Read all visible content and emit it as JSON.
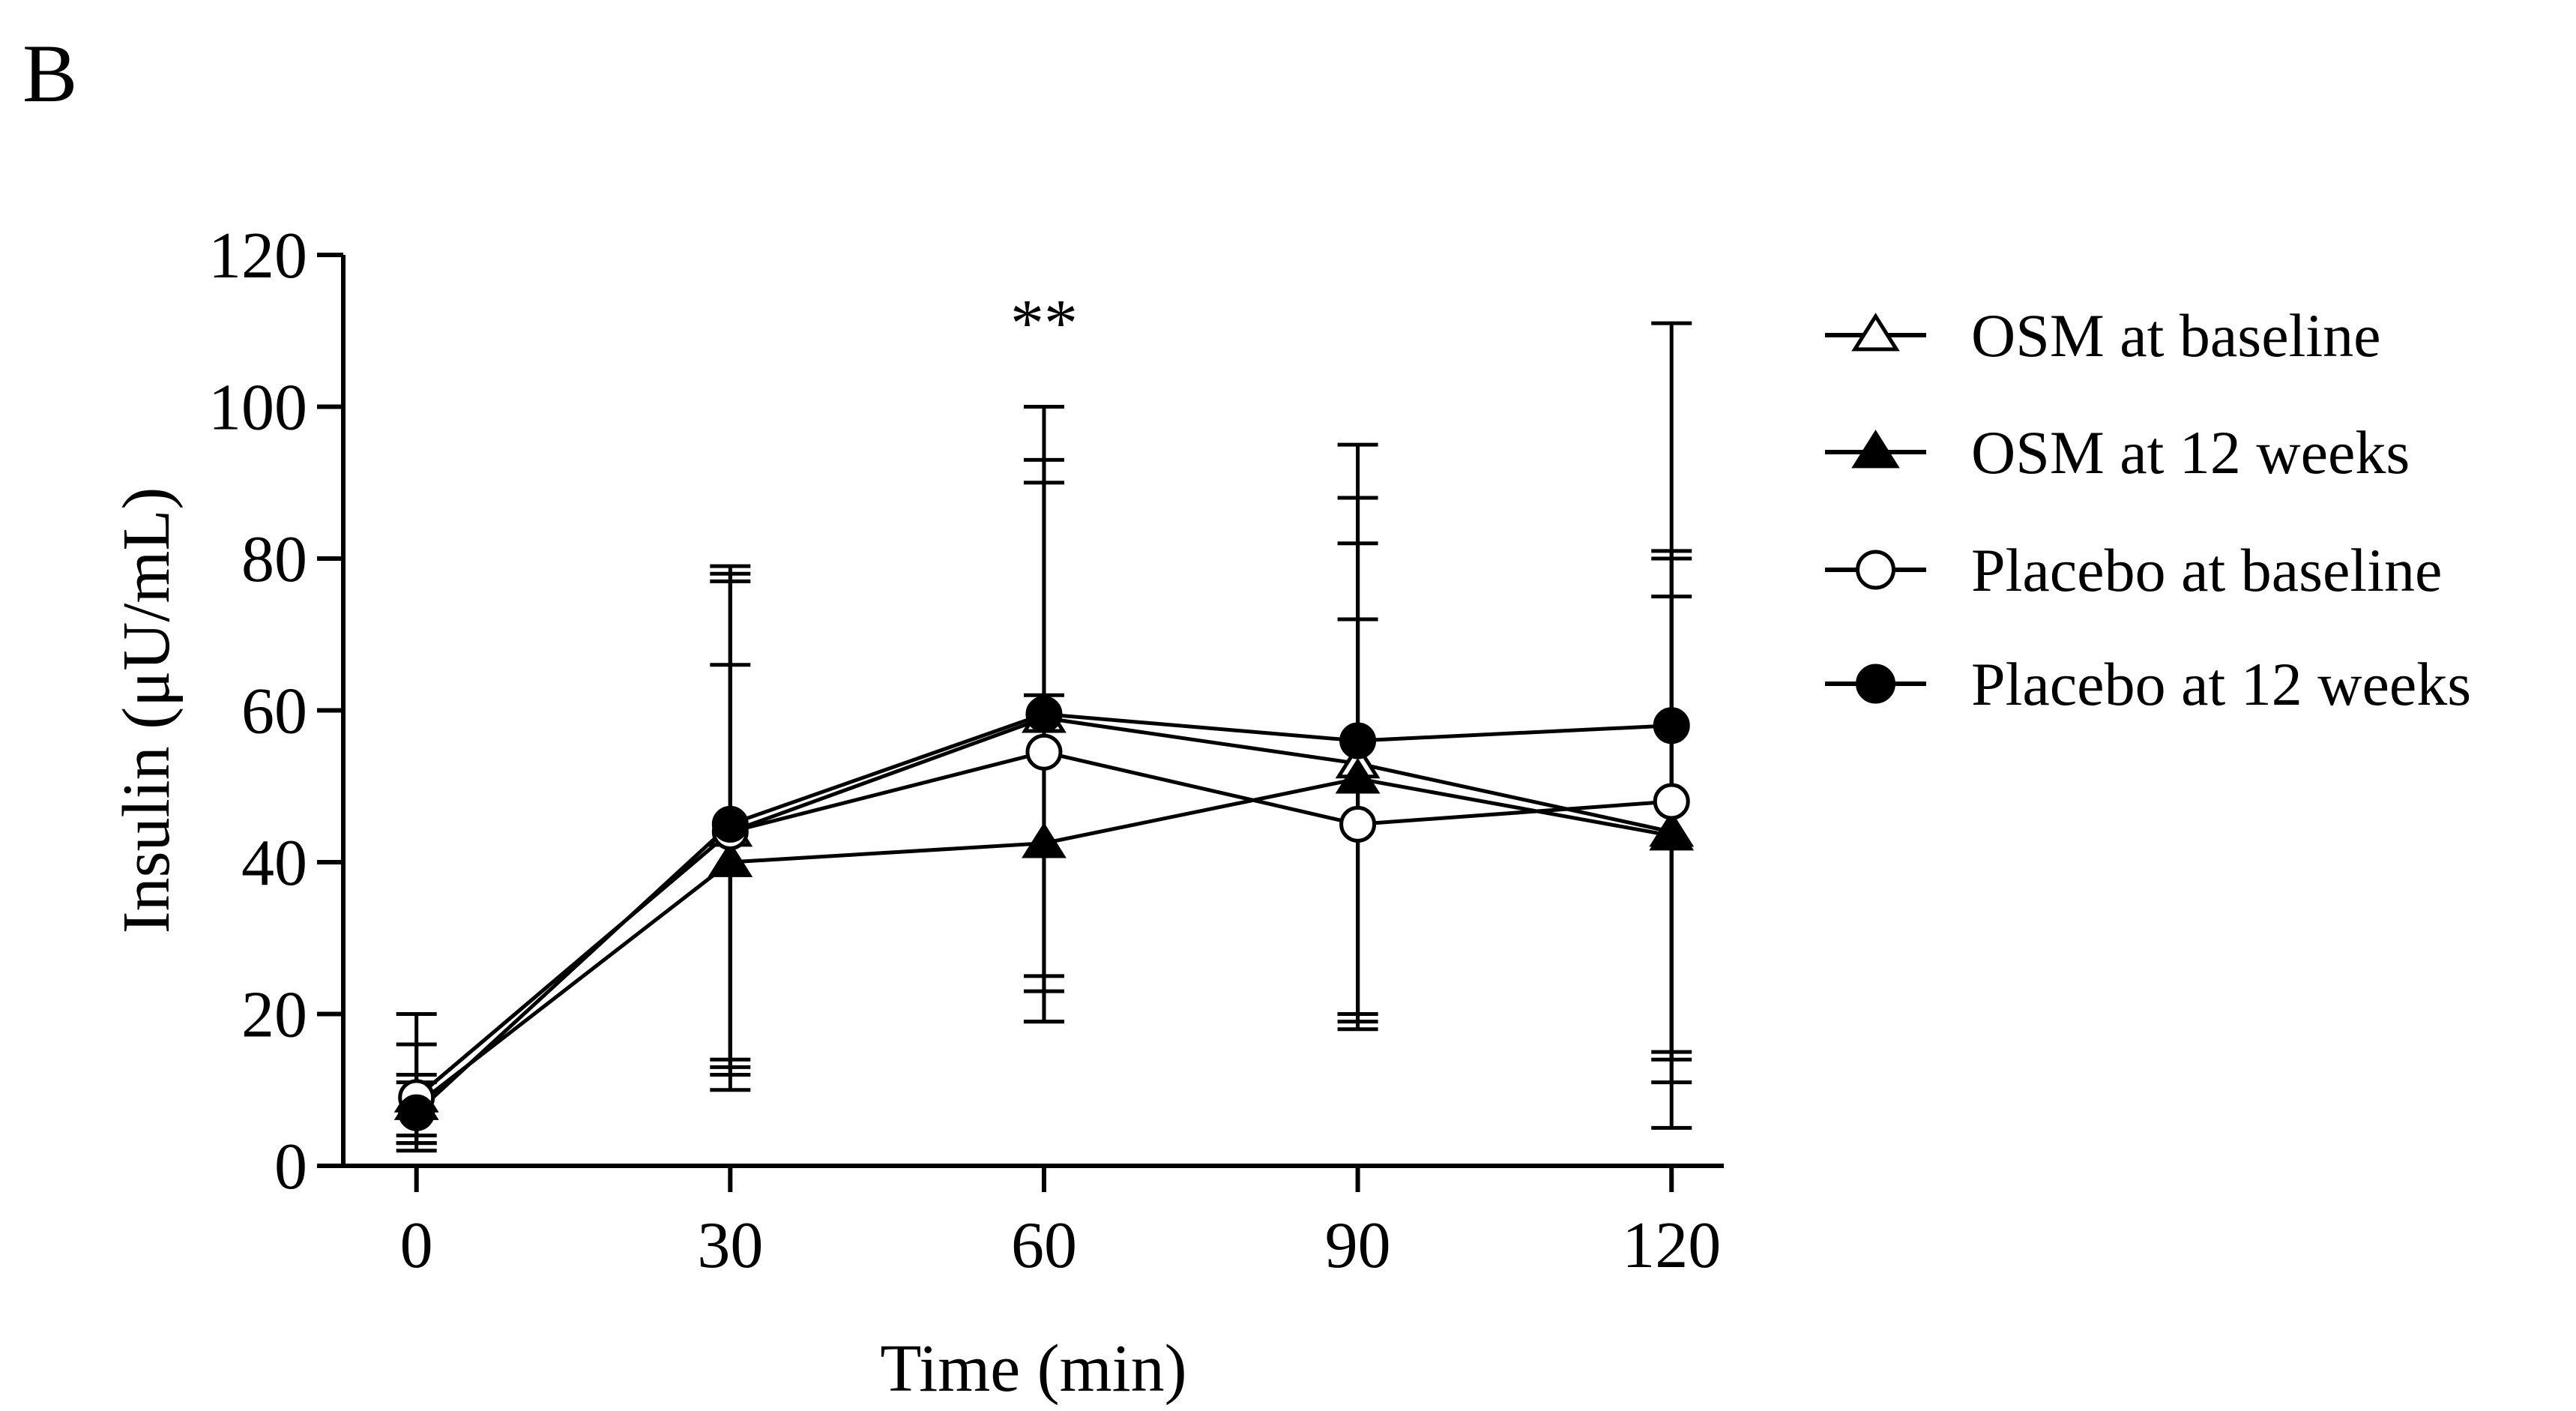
{
  "panel_label": "B",
  "chart_data": {
    "type": "line",
    "title": "",
    "xlabel": "Time (min)",
    "ylabel": "Insulin (μU/mL)",
    "x": [
      0,
      30,
      60,
      90,
      120
    ],
    "x_tick_labels": [
      "0",
      "30",
      "60",
      "90",
      "120"
    ],
    "y_ticks": [
      0,
      20,
      40,
      60,
      80,
      100,
      120
    ],
    "y_tick_labels": [
      "0",
      "20",
      "40",
      "60",
      "80",
      "100",
      "120"
    ],
    "xlim": [
      -7,
      125
    ],
    "ylim": [
      0,
      120
    ],
    "grid": false,
    "legend_position": "right",
    "annotations": [
      {
        "text": "**",
        "x": 60,
        "y": 112
      }
    ],
    "series": [
      {
        "name": "OSM at baseline",
        "marker": "triangle-open",
        "values": [
          9,
          44,
          59,
          53,
          44
        ],
        "error_high": [
          16,
          78,
          90,
          88,
          75
        ],
        "error_low": [
          3,
          12,
          19,
          18,
          14
        ]
      },
      {
        "name": "OSM at 12 weeks",
        "marker": "triangle-filled",
        "values": [
          8,
          40,
          42.5,
          51,
          43.5
        ],
        "error_high": [
          12,
          66,
          62,
          72,
          81
        ],
        "error_low": [
          4,
          14,
          23,
          20,
          5
        ]
      },
      {
        "name": "Placebo at baseline",
        "marker": "circle-open",
        "values": [
          9,
          44,
          54.5,
          45,
          48
        ],
        "error_high": [
          20,
          79,
          100,
          95,
          111
        ],
        "error_low": [
          2,
          10,
          19,
          19,
          11
        ]
      },
      {
        "name": "Placebo at 12 weeks",
        "marker": "circle-filled",
        "values": [
          7,
          45,
          59.5,
          56,
          58
        ],
        "error_high": [
          11,
          77,
          93,
          82,
          80
        ],
        "error_low": [
          3,
          13,
          25,
          20,
          15
        ]
      }
    ]
  }
}
